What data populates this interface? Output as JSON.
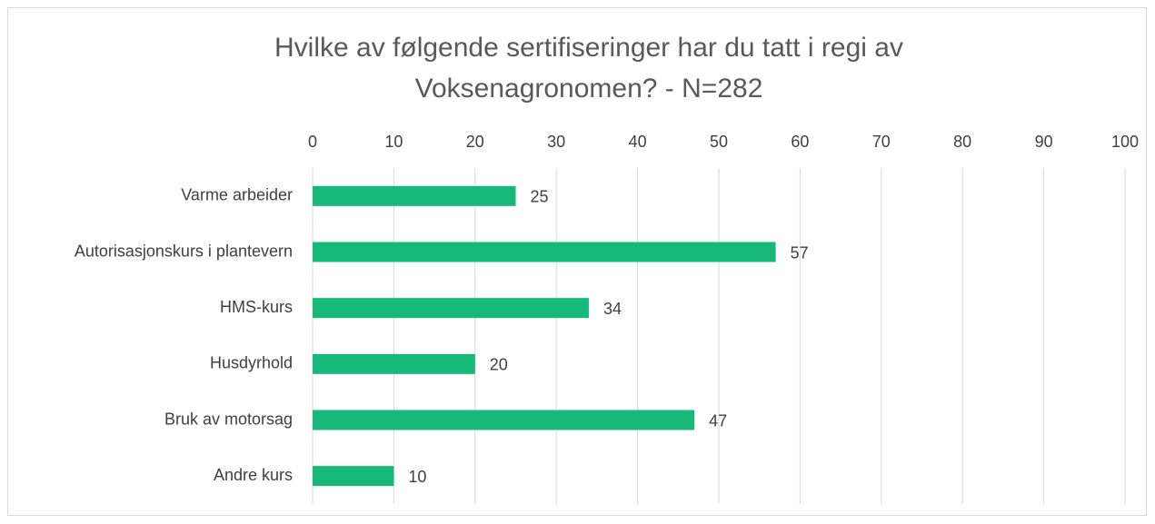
{
  "chart_data": {
    "type": "hbar",
    "title": "Hvilke av følgende sertifiseringer har du tatt i regi av Voksenagronomen? - N=282",
    "categories": [
      "Varme arbeider",
      "Autorisasjonskurs i plantevern",
      "HMS-kurs",
      "Husdyrhold",
      "Bruk av motorsag",
      "Andre kurs"
    ],
    "values": [
      25,
      57,
      34,
      20,
      47,
      10
    ],
    "color": "#17b978",
    "xlim": [
      0,
      100
    ],
    "xticks": [
      0,
      10,
      20,
      30,
      40,
      50,
      60,
      70,
      80,
      90,
      100
    ],
    "grid": true
  }
}
